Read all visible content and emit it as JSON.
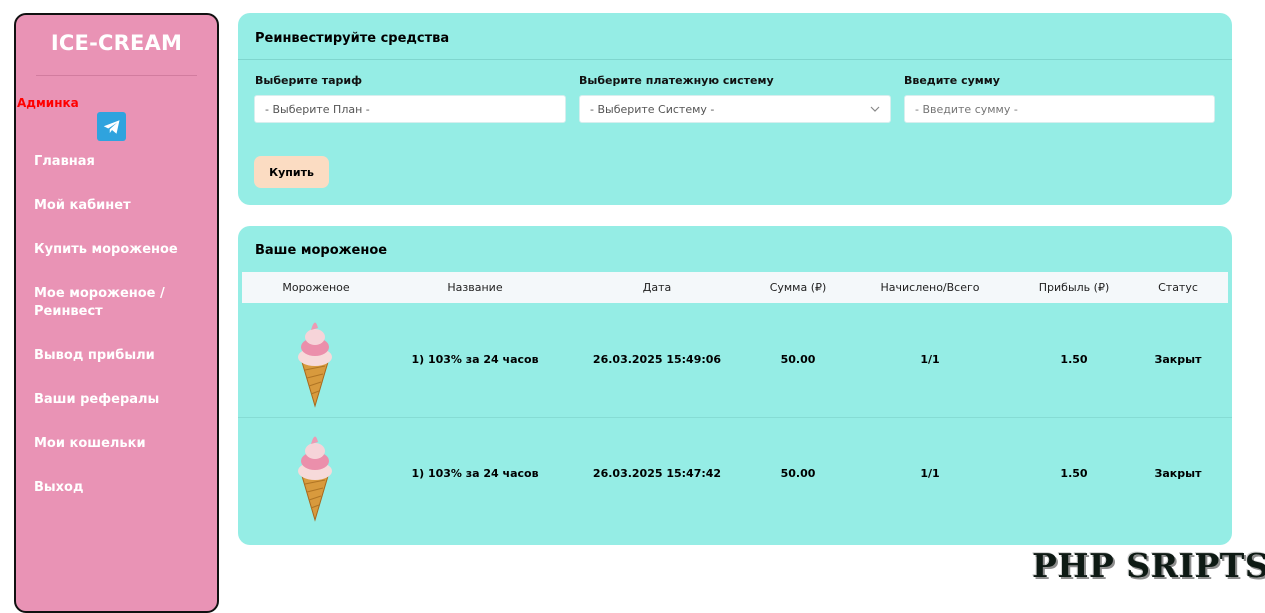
{
  "sidebar": {
    "logo": "ICE-CREAM",
    "admin_link": "Админка",
    "telegram_icon": "telegram-icon",
    "items": [
      {
        "label": "Главная"
      },
      {
        "label": "Мой кабинет"
      },
      {
        "label": "Купить мороженое"
      },
      {
        "label": "Мое мороженое / Реинвест"
      },
      {
        "label": "Вывод прибыли"
      },
      {
        "label": "Ваши рефералы"
      },
      {
        "label": "Мои кошельки"
      },
      {
        "label": "Выход"
      }
    ]
  },
  "reinvest": {
    "title": "Реинвестируйте средства",
    "tariff_label": "Выберите тариф",
    "tariff_value": "- Выберите План -",
    "system_label": "Выберите платежную систему",
    "system_value": "- Выберите Систему -",
    "amount_label": "Введите сумму",
    "amount_placeholder": "- Введите сумму -",
    "buy_label": "Купить"
  },
  "icecream": {
    "title": "Ваше мороженое",
    "columns": [
      "Мороженое",
      "Название",
      "Дата",
      "Сумма (₽)",
      "Начислено/Всего",
      "Прибыль (₽)",
      "Статус"
    ],
    "rows": [
      {
        "name": "1) 103% за 24 часов",
        "date": "26.03.2025 15:49:06",
        "amount": "50.00",
        "accrued": "1/1",
        "profit": "1.50",
        "status": "Закрыт"
      },
      {
        "name": "1) 103% за 24 часов",
        "date": "26.03.2025 15:47:42",
        "amount": "50.00",
        "accrued": "1/1",
        "profit": "1.50",
        "status": "Закрыт"
      }
    ]
  },
  "watermark": "PHP SRIPTS",
  "colors": {
    "sidebar": "#e993b5",
    "panel": "#95ede5",
    "button": "#fbdcc2",
    "admin": "#ff0000",
    "telegram": "#2fa3de"
  }
}
